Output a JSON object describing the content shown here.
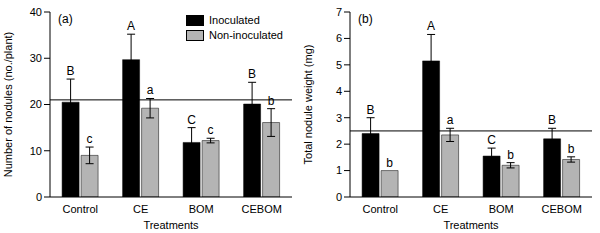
{
  "chart_data": [
    {
      "type": "bar",
      "title": "(a)",
      "x_label": "Treatments",
      "y_label": "Number of nodules (no./plant)",
      "categories": [
        "Control",
        "CE",
        "BOM",
        "CEBOM"
      ],
      "series": [
        {
          "name": "Inoculated",
          "color": "#000000",
          "values": [
            20.5,
            29.7,
            11.8,
            20.1
          ],
          "errors": [
            5.0,
            5.5,
            3.2,
            4.7
          ],
          "letters": [
            "B",
            "A",
            "C",
            "B"
          ]
        },
        {
          "name": "Non-inoculated",
          "color": "#b4b4b4",
          "values": [
            9.0,
            19.2,
            12.2,
            16.1
          ],
          "errors": [
            1.8,
            2.1,
            0.5,
            3.0
          ],
          "letters": [
            "c",
            "a",
            "c",
            "b"
          ]
        }
      ],
      "reference_line": 21,
      "ylim": [
        0,
        40
      ],
      "yticks": [
        0,
        10,
        20,
        30,
        40
      ],
      "legend": "top"
    },
    {
      "type": "bar",
      "title": "(b)",
      "x_label": "Treatments",
      "y_label": "Total nodule weight (mg)",
      "categories": [
        "Control",
        "CE",
        "BOM",
        "CEBOM"
      ],
      "series": [
        {
          "name": "Inoculated",
          "color": "#000000",
          "values": [
            2.4,
            5.15,
            1.55,
            2.2
          ],
          "errors": [
            0.6,
            1.0,
            0.3,
            0.4
          ],
          "letters": [
            "B",
            "A",
            "C",
            "B"
          ]
        },
        {
          "name": "Non-inoculated",
          "color": "#b4b4b4",
          "values": [
            1.0,
            2.35,
            1.2,
            1.42
          ],
          "errors": [
            0.0,
            0.25,
            0.1,
            0.1
          ],
          "letters": [
            "b",
            "a",
            "b",
            "b"
          ]
        }
      ],
      "reference_line": 2.5,
      "ylim": [
        0,
        7
      ],
      "yticks": [
        0,
        1,
        2,
        3,
        4,
        5,
        6,
        7
      ]
    }
  ]
}
